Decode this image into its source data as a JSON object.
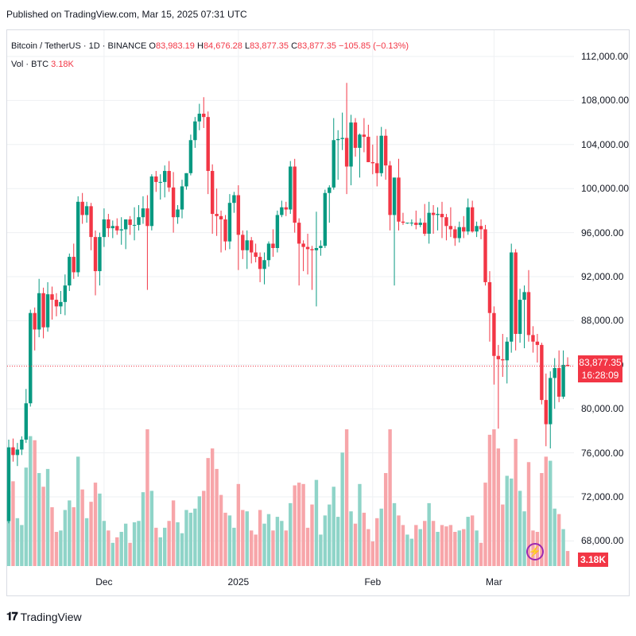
{
  "published": "Published on TradingView.com, Mar 15, 2025 07:31 UTC",
  "legend": {
    "symbol": "Bitcoin / TetherUS · 1D · BINANCE",
    "o_label": "O",
    "o_value": "83,983.19",
    "h_label": "H",
    "h_value": "84,676.28",
    "l_label": "L",
    "l_value": "83,877.35",
    "c_label": "C",
    "c_value": "83,877.35",
    "change": "−105.85 (−0.13%)",
    "vol_label": "Vol · BTC",
    "vol_value": "3.18K"
  },
  "price_label": {
    "price": "83,877.35",
    "countdown": "16:28:09"
  },
  "volume_label": "3.18K",
  "brand": "TradingView",
  "colors": {
    "up": "#089981",
    "down": "#f23645",
    "up_volume": "#8fd4c8",
    "down_volume": "#f7a5a9",
    "grid": "#eef0f3"
  },
  "chart_data": {
    "type": "candlestick",
    "symbol": "Bitcoin / TetherUS",
    "interval": "1D",
    "exchange": "BINANCE",
    "y_ticks": [
      "112,000.00",
      "108,000.00",
      "104,000.00",
      "100,000.00",
      "96,000.00",
      "92,000.00",
      "88,000.00",
      "84,000.00",
      "80,000.00",
      "76,000.00",
      "72,000.00",
      "68,000.00"
    ],
    "ylim": [
      65000,
      113000
    ],
    "x_ticks": [
      {
        "label": "Dec",
        "index": 22
      },
      {
        "label": "2025",
        "index": 53
      },
      {
        "label": "Feb",
        "index": 84
      },
      {
        "label": "Mar",
        "index": 112
      }
    ],
    "current_price": 83877.35,
    "candles": [
      {
        "o": 69800,
        "h": 77200,
        "l": 69600,
        "c": 76500,
        "v": 0.55
      },
      {
        "o": 76500,
        "h": 77300,
        "l": 75200,
        "c": 75800,
        "v": 0.62
      },
      {
        "o": 75800,
        "h": 76900,
        "l": 74800,
        "c": 76300,
        "v": 0.35
      },
      {
        "o": 76300,
        "h": 77500,
        "l": 75800,
        "c": 77200,
        "v": 0.3
      },
      {
        "o": 77200,
        "h": 81800,
        "l": 76900,
        "c": 80500,
        "v": 0.72
      },
      {
        "o": 80500,
        "h": 89000,
        "l": 80200,
        "c": 88700,
        "v": 0.95
      },
      {
        "o": 88700,
        "h": 89200,
        "l": 85300,
        "c": 87200,
        "v": 0.92
      },
      {
        "o": 87200,
        "h": 91800,
        "l": 86500,
        "c": 90500,
        "v": 0.68
      },
      {
        "o": 90500,
        "h": 91000,
        "l": 86400,
        "c": 87400,
        "v": 0.58
      },
      {
        "o": 87400,
        "h": 91500,
        "l": 87000,
        "c": 90400,
        "v": 0.71
      },
      {
        "o": 90400,
        "h": 91100,
        "l": 88100,
        "c": 89900,
        "v": 0.43
      },
      {
        "o": 89900,
        "h": 90500,
        "l": 88400,
        "c": 89300,
        "v": 0.25
      },
      {
        "o": 89300,
        "h": 90700,
        "l": 88600,
        "c": 89700,
        "v": 0.26
      },
      {
        "o": 89700,
        "h": 92200,
        "l": 88500,
        "c": 91200,
        "v": 0.41
      },
      {
        "o": 91200,
        "h": 94100,
        "l": 90700,
        "c": 93800,
        "v": 0.48
      },
      {
        "o": 93800,
        "h": 95000,
        "l": 91800,
        "c": 92400,
        "v": 0.43
      },
      {
        "o": 92400,
        "h": 99300,
        "l": 92000,
        "c": 98800,
        "v": 0.8
      },
      {
        "o": 98800,
        "h": 99600,
        "l": 96800,
        "c": 97600,
        "v": 0.56
      },
      {
        "o": 97600,
        "h": 98800,
        "l": 96900,
        "c": 98400,
        "v": 0.35
      },
      {
        "o": 98400,
        "h": 98700,
        "l": 94400,
        "c": 95600,
        "v": 0.47
      },
      {
        "o": 95600,
        "h": 96200,
        "l": 90300,
        "c": 92500,
        "v": 0.61
      },
      {
        "o": 92500,
        "h": 96000,
        "l": 91200,
        "c": 95600,
        "v": 0.53
      },
      {
        "o": 95600,
        "h": 98200,
        "l": 94700,
        "c": 97200,
        "v": 0.33
      },
      {
        "o": 97200,
        "h": 97700,
        "l": 95600,
        "c": 96400,
        "v": 0.26
      },
      {
        "o": 96400,
        "h": 97100,
        "l": 95500,
        "c": 96600,
        "v": 0.17
      },
      {
        "o": 96600,
        "h": 97300,
        "l": 95800,
        "c": 96200,
        "v": 0.21
      },
      {
        "o": 96200,
        "h": 97400,
        "l": 94900,
        "c": 96300,
        "v": 0.25
      },
      {
        "o": 96300,
        "h": 97200,
        "l": 94500,
        "c": 97200,
        "v": 0.31
      },
      {
        "o": 97200,
        "h": 97500,
        "l": 95800,
        "c": 96700,
        "v": 0.17
      },
      {
        "o": 96700,
        "h": 98300,
        "l": 95300,
        "c": 96700,
        "v": 0.32
      },
      {
        "o": 96700,
        "h": 98500,
        "l": 96200,
        "c": 97400,
        "v": 0.33
      },
      {
        "o": 97400,
        "h": 99300,
        "l": 96800,
        "c": 98200,
        "v": 0.54
      },
      {
        "o": 98200,
        "h": 99400,
        "l": 90800,
        "c": 96600,
        "v": 1.0
      },
      {
        "o": 96600,
        "h": 101300,
        "l": 96200,
        "c": 101100,
        "v": 0.55
      },
      {
        "o": 101100,
        "h": 101600,
        "l": 99700,
        "c": 100600,
        "v": 0.28
      },
      {
        "o": 100600,
        "h": 101300,
        "l": 99000,
        "c": 100600,
        "v": 0.21
      },
      {
        "o": 100600,
        "h": 102100,
        "l": 99200,
        "c": 101600,
        "v": 0.28
      },
      {
        "o": 101600,
        "h": 102500,
        "l": 99700,
        "c": 100100,
        "v": 0.33
      },
      {
        "o": 100100,
        "h": 101500,
        "l": 96000,
        "c": 97400,
        "v": 0.48
      },
      {
        "o": 97400,
        "h": 98500,
        "l": 96800,
        "c": 98100,
        "v": 0.32
      },
      {
        "o": 98100,
        "h": 100800,
        "l": 97300,
        "c": 100200,
        "v": 0.24
      },
      {
        "o": 100200,
        "h": 101400,
        "l": 99900,
        "c": 101400,
        "v": 0.41
      },
      {
        "o": 101400,
        "h": 104900,
        "l": 101200,
        "c": 104400,
        "v": 0.39
      },
      {
        "o": 104400,
        "h": 106500,
        "l": 103700,
        "c": 106100,
        "v": 0.42
      },
      {
        "o": 106100,
        "h": 107700,
        "l": 105300,
        "c": 106800,
        "v": 0.51
      },
      {
        "o": 106800,
        "h": 108300,
        "l": 105500,
        "c": 106500,
        "v": 0.55
      },
      {
        "o": 106500,
        "h": 107000,
        "l": 99500,
        "c": 101600,
        "v": 0.79
      },
      {
        "o": 101600,
        "h": 102200,
        "l": 95900,
        "c": 97700,
        "v": 0.86
      },
      {
        "o": 97700,
        "h": 100000,
        "l": 95700,
        "c": 97500,
        "v": 0.71
      },
      {
        "o": 97500,
        "h": 98000,
        "l": 94200,
        "c": 97200,
        "v": 0.52
      },
      {
        "o": 97200,
        "h": 97600,
        "l": 94400,
        "c": 95200,
        "v": 0.39
      },
      {
        "o": 95200,
        "h": 99500,
        "l": 94500,
        "c": 98700,
        "v": 0.37
      },
      {
        "o": 98700,
        "h": 99700,
        "l": 97800,
        "c": 99400,
        "v": 0.28
      },
      {
        "o": 99400,
        "h": 100300,
        "l": 92600,
        "c": 95800,
        "v": 0.6
      },
      {
        "o": 95800,
        "h": 96200,
        "l": 93600,
        "c": 94400,
        "v": 0.41
      },
      {
        "o": 94400,
        "h": 96200,
        "l": 92700,
        "c": 95300,
        "v": 0.4
      },
      {
        "o": 95300,
        "h": 95600,
        "l": 93200,
        "c": 94200,
        "v": 0.26
      },
      {
        "o": 94200,
        "h": 95000,
        "l": 93300,
        "c": 93800,
        "v": 0.23
      },
      {
        "o": 93800,
        "h": 94200,
        "l": 91500,
        "c": 92700,
        "v": 0.41
      },
      {
        "o": 92700,
        "h": 94200,
        "l": 91300,
        "c": 93500,
        "v": 0.31
      },
      {
        "o": 93500,
        "h": 95200,
        "l": 92900,
        "c": 95000,
        "v": 0.38
      },
      {
        "o": 95000,
        "h": 96300,
        "l": 93800,
        "c": 94600,
        "v": 0.26
      },
      {
        "o": 94600,
        "h": 98000,
        "l": 94200,
        "c": 97600,
        "v": 0.36
      },
      {
        "o": 97600,
        "h": 98900,
        "l": 97400,
        "c": 98300,
        "v": 0.33
      },
      {
        "o": 98300,
        "h": 98800,
        "l": 97500,
        "c": 98100,
        "v": 0.26
      },
      {
        "o": 98100,
        "h": 102500,
        "l": 97700,
        "c": 102000,
        "v": 0.46
      },
      {
        "o": 102000,
        "h": 102700,
        "l": 96000,
        "c": 96900,
        "v": 0.59
      },
      {
        "o": 96900,
        "h": 97300,
        "l": 91200,
        "c": 95000,
        "v": 0.61
      },
      {
        "o": 95000,
        "h": 95300,
        "l": 92500,
        "c": 94700,
        "v": 0.6
      },
      {
        "o": 94700,
        "h": 95900,
        "l": 92200,
        "c": 94500,
        "v": 0.28
      },
      {
        "o": 94500,
        "h": 94800,
        "l": 90800,
        "c": 94400,
        "v": 0.45
      },
      {
        "o": 94400,
        "h": 97900,
        "l": 89300,
        "c": 94600,
        "v": 0.63
      },
      {
        "o": 94600,
        "h": 95300,
        "l": 93900,
        "c": 94800,
        "v": 0.23
      },
      {
        "o": 94800,
        "h": 99900,
        "l": 94600,
        "c": 99600,
        "v": 0.37
      },
      {
        "o": 99600,
        "h": 100300,
        "l": 96900,
        "c": 100100,
        "v": 0.45
      },
      {
        "o": 100100,
        "h": 106400,
        "l": 99900,
        "c": 104400,
        "v": 0.58
      },
      {
        "o": 104400,
        "h": 105300,
        "l": 100800,
        "c": 104500,
        "v": 0.36
      },
      {
        "o": 104500,
        "h": 106900,
        "l": 103500,
        "c": 104600,
        "v": 0.83
      },
      {
        "o": 104600,
        "h": 109600,
        "l": 99500,
        "c": 102000,
        "v": 1.0
      },
      {
        "o": 102000,
        "h": 106700,
        "l": 100300,
        "c": 106000,
        "v": 0.4
      },
      {
        "o": 106000,
        "h": 106400,
        "l": 102900,
        "c": 103700,
        "v": 0.31
      },
      {
        "o": 103700,
        "h": 105000,
        "l": 101000,
        "c": 104900,
        "v": 0.6
      },
      {
        "o": 104900,
        "h": 106400,
        "l": 103300,
        "c": 104700,
        "v": 0.39
      },
      {
        "o": 104700,
        "h": 105800,
        "l": 102400,
        "c": 102400,
        "v": 0.27
      },
      {
        "o": 102400,
        "h": 104000,
        "l": 101300,
        "c": 102300,
        "v": 0.18
      },
      {
        "o": 102300,
        "h": 104800,
        "l": 100200,
        "c": 101400,
        "v": 0.35
      },
      {
        "o": 101400,
        "h": 105600,
        "l": 101100,
        "c": 104800,
        "v": 0.42
      },
      {
        "o": 104800,
        "h": 105400,
        "l": 100800,
        "c": 102100,
        "v": 0.68
      },
      {
        "o": 102100,
        "h": 102500,
        "l": 96200,
        "c": 97600,
        "v": 1.0
      },
      {
        "o": 97600,
        "h": 101000,
        "l": 91200,
        "c": 101000,
        "v": 0.46
      },
      {
        "o": 101000,
        "h": 102700,
        "l": 96200,
        "c": 97000,
        "v": 0.37
      },
      {
        "o": 97000,
        "h": 97800,
        "l": 96700,
        "c": 96900,
        "v": 0.3
      },
      {
        "o": 96900,
        "h": 96900,
        "l": 96800,
        "c": 96900,
        "v": 0.23
      },
      {
        "o": 96900,
        "h": 97200,
        "l": 96600,
        "c": 96900,
        "v": 0.2
      },
      {
        "o": 96900,
        "h": 98000,
        "l": 96300,
        "c": 96700,
        "v": 0.3
      },
      {
        "o": 96700,
        "h": 97300,
        "l": 96500,
        "c": 96900,
        "v": 0.27
      },
      {
        "o": 96900,
        "h": 98600,
        "l": 95700,
        "c": 95900,
        "v": 0.33
      },
      {
        "o": 95900,
        "h": 98800,
        "l": 95000,
        "c": 97800,
        "v": 0.46
      },
      {
        "o": 97800,
        "h": 98500,
        "l": 95900,
        "c": 97600,
        "v": 0.33
      },
      {
        "o": 97600,
        "h": 98300,
        "l": 96200,
        "c": 97700,
        "v": 0.25
      },
      {
        "o": 97700,
        "h": 98800,
        "l": 95500,
        "c": 97400,
        "v": 0.3
      },
      {
        "o": 97400,
        "h": 97700,
        "l": 95300,
        "c": 96600,
        "v": 0.29
      },
      {
        "o": 96600,
        "h": 98300,
        "l": 95600,
        "c": 96300,
        "v": 0.3
      },
      {
        "o": 96300,
        "h": 96600,
        "l": 94800,
        "c": 95500,
        "v": 0.25
      },
      {
        "o": 95500,
        "h": 97000,
        "l": 95100,
        "c": 96500,
        "v": 0.26
      },
      {
        "o": 96500,
        "h": 97500,
        "l": 95500,
        "c": 96100,
        "v": 0.27
      },
      {
        "o": 96100,
        "h": 99100,
        "l": 95800,
        "c": 98300,
        "v": 0.36
      },
      {
        "o": 98300,
        "h": 98900,
        "l": 96000,
        "c": 96100,
        "v": 0.37
      },
      {
        "o": 96100,
        "h": 97000,
        "l": 95600,
        "c": 96600,
        "v": 0.26
      },
      {
        "o": 96600,
        "h": 97200,
        "l": 95400,
        "c": 96300,
        "v": 0.17
      },
      {
        "o": 96300,
        "h": 96700,
        "l": 91200,
        "c": 91500,
        "v": 0.61
      },
      {
        "o": 91500,
        "h": 92500,
        "l": 86100,
        "c": 88700,
        "v": 0.96
      },
      {
        "o": 88700,
        "h": 89300,
        "l": 82200,
        "c": 84800,
        "v": 1.0
      },
      {
        "o": 84800,
        "h": 85800,
        "l": 78200,
        "c": 84500,
        "v": 0.86
      },
      {
        "o": 84500,
        "h": 86800,
        "l": 82900,
        "c": 84400,
        "v": 0.45
      },
      {
        "o": 84400,
        "h": 86500,
        "l": 82300,
        "c": 86100,
        "v": 0.66
      },
      {
        "o": 86100,
        "h": 95000,
        "l": 85100,
        "c": 94200,
        "v": 0.64
      },
      {
        "o": 94200,
        "h": 94500,
        "l": 85300,
        "c": 86800,
        "v": 0.93
      },
      {
        "o": 86800,
        "h": 90900,
        "l": 86000,
        "c": 89900,
        "v": 0.55
      },
      {
        "o": 89900,
        "h": 91200,
        "l": 85500,
        "c": 90600,
        "v": 0.4
      },
      {
        "o": 90600,
        "h": 92600,
        "l": 86100,
        "c": 86700,
        "v": 0.76
      },
      {
        "o": 86700,
        "h": 87500,
        "l": 85100,
        "c": 86100,
        "v": 0.26
      },
      {
        "o": 86100,
        "h": 86800,
        "l": 84200,
        "c": 85800,
        "v": 0.25
      },
      {
        "o": 85800,
        "h": 86000,
        "l": 80400,
        "c": 80800,
        "v": 0.68
      },
      {
        "o": 80800,
        "h": 83200,
        "l": 76600,
        "c": 78600,
        "v": 0.8
      },
      {
        "o": 78600,
        "h": 83400,
        "l": 76400,
        "c": 82800,
        "v": 0.77
      },
      {
        "o": 82800,
        "h": 84600,
        "l": 80000,
        "c": 83700,
        "v": 0.42
      },
      {
        "o": 83700,
        "h": 85300,
        "l": 80600,
        "c": 81100,
        "v": 0.38
      },
      {
        "o": 81100,
        "h": 85300,
        "l": 80900,
        "c": 83983,
        "v": 0.27
      },
      {
        "o": 83983,
        "h": 84676,
        "l": 83877,
        "c": 83877,
        "v": 0.11
      }
    ]
  }
}
